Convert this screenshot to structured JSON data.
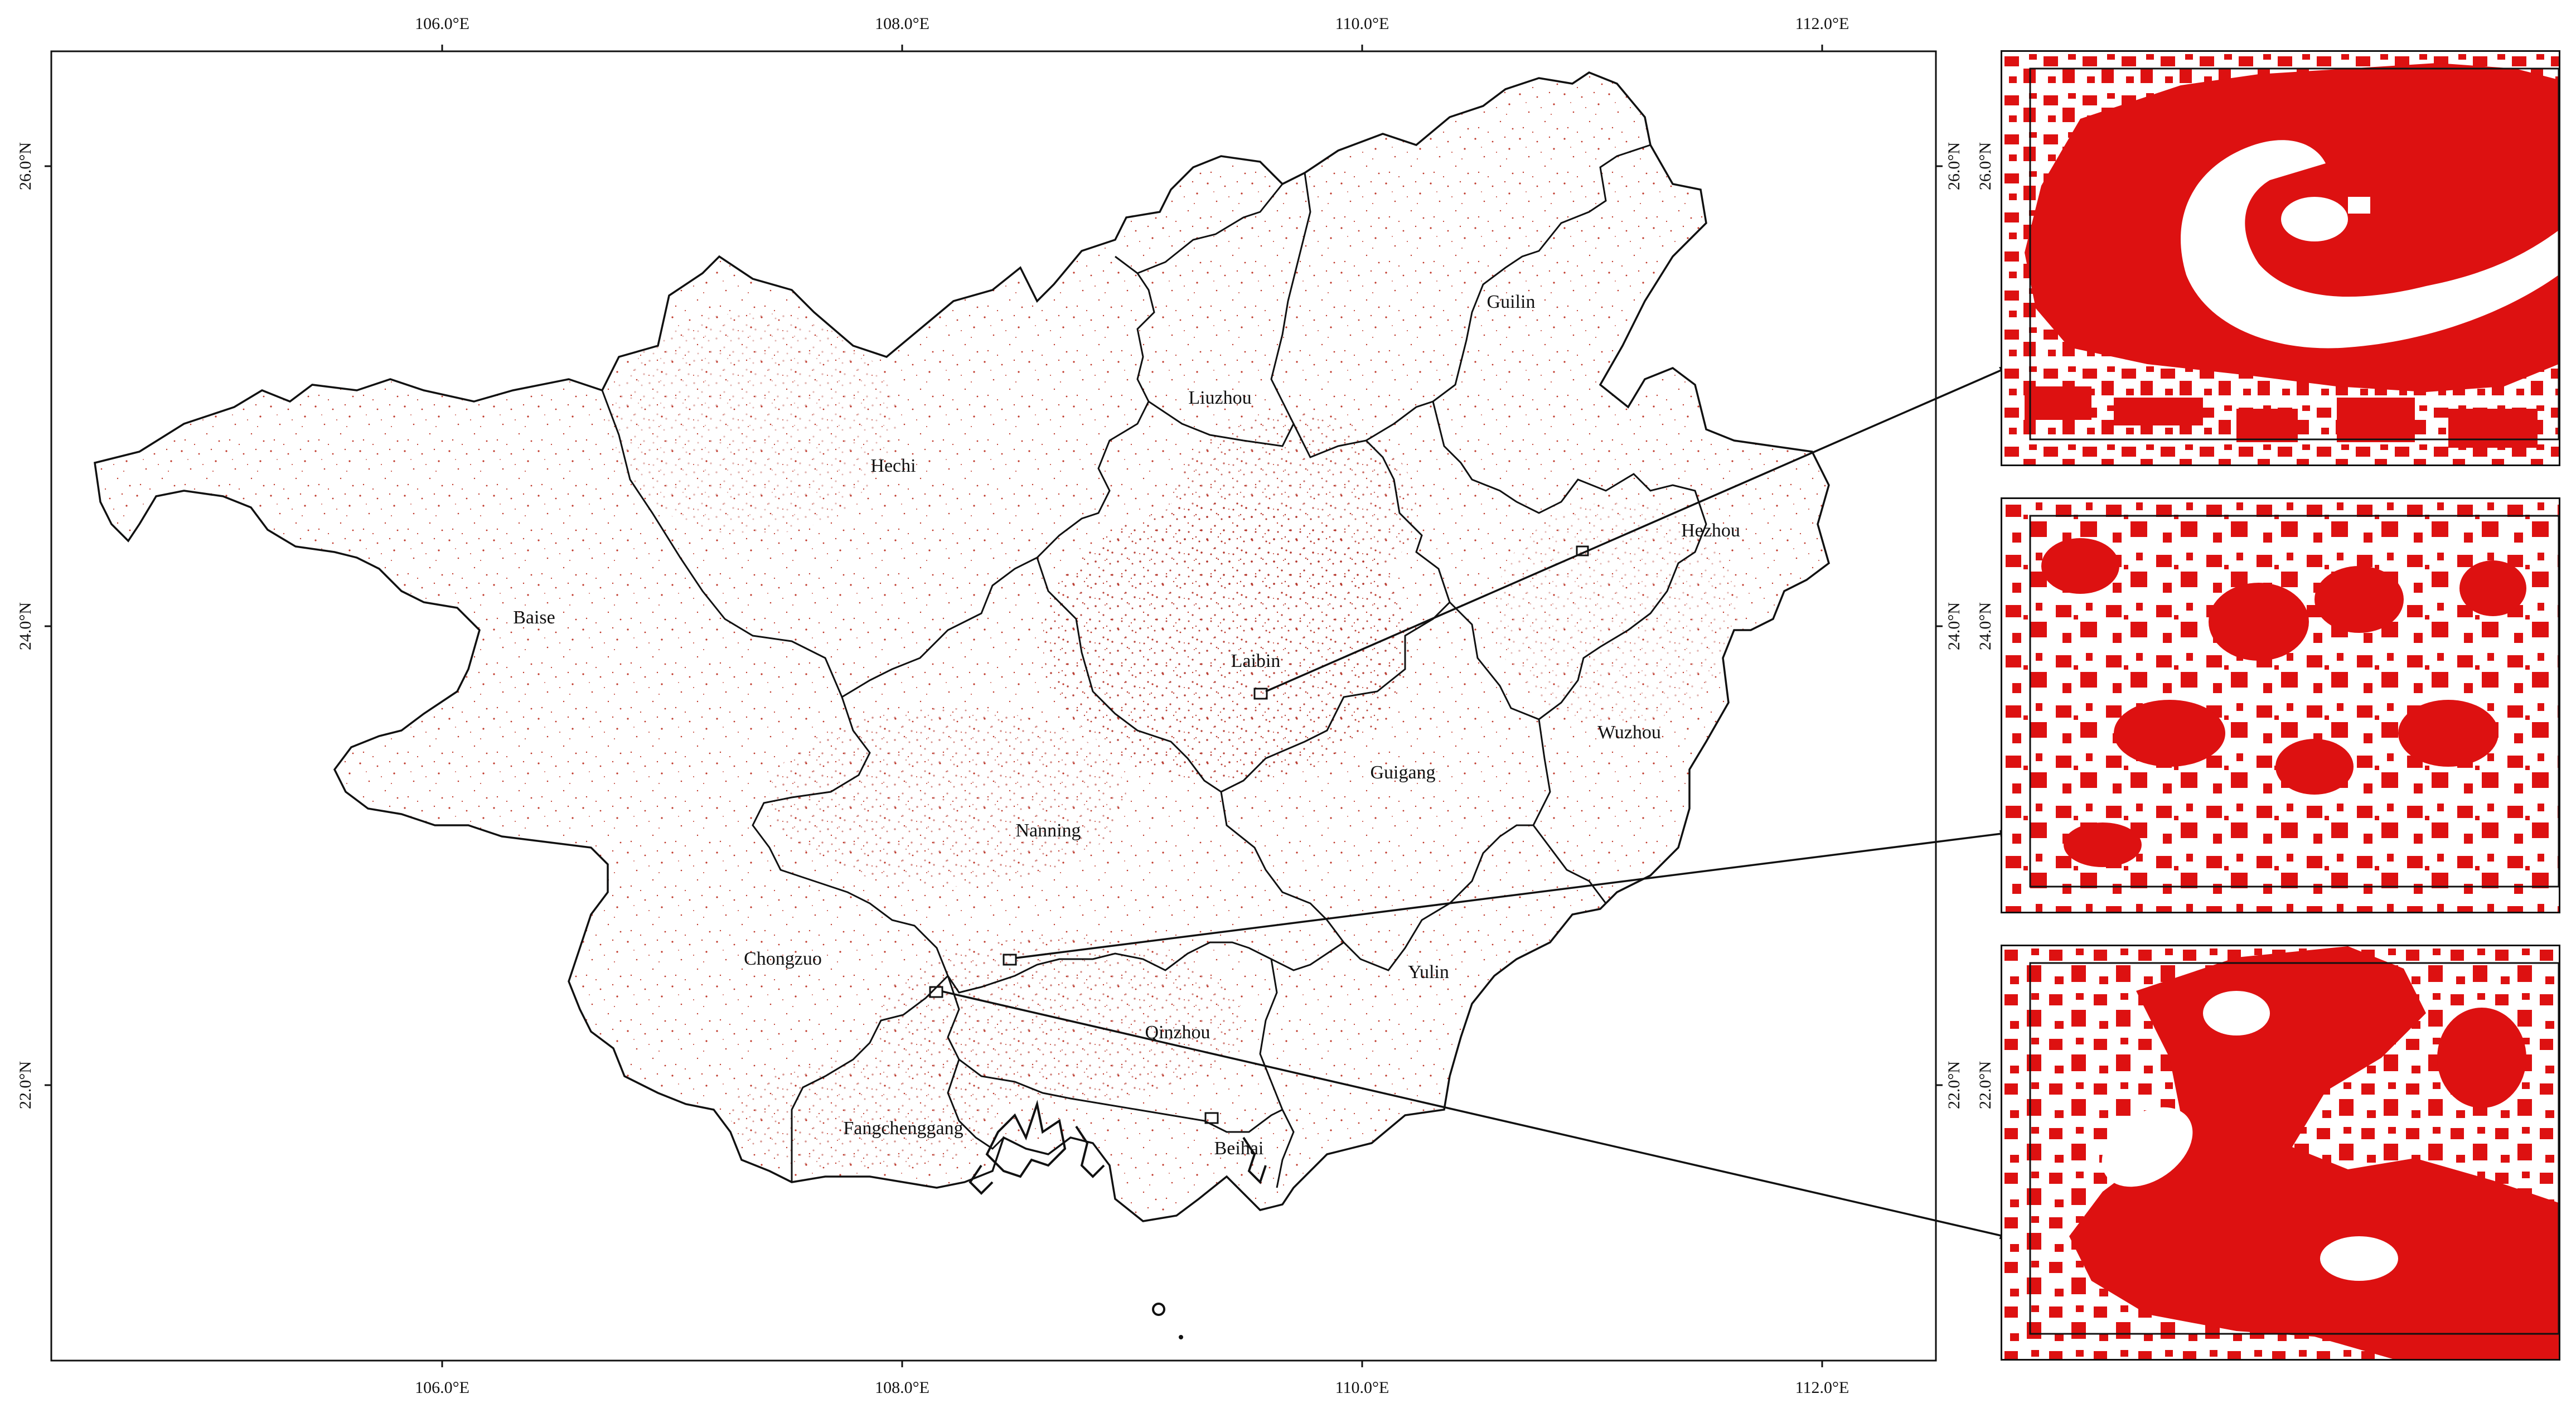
{
  "map": {
    "lon_ticks": [
      "106.0°E",
      "108.0°E",
      "110.0°E",
      "112.0°E"
    ],
    "lat_ticks": [
      "26.0°N",
      "24.0°N",
      "22.0°N"
    ],
    "regions": [
      {
        "name": "Guilin"
      },
      {
        "name": "Liuzhou"
      },
      {
        "name": "Hechi"
      },
      {
        "name": "Hezhou"
      },
      {
        "name": "Baise"
      },
      {
        "name": "Laibin"
      },
      {
        "name": "Wuzhou"
      },
      {
        "name": "Guigang"
      },
      {
        "name": "Nanning"
      },
      {
        "name": "Yulin"
      },
      {
        "name": "Chongzuo"
      },
      {
        "name": "Qinzhou"
      },
      {
        "name": "Fangchenggang"
      },
      {
        "name": "Beihai"
      }
    ],
    "colors": {
      "dots": "#c0392b",
      "inset_fill": "#dd1111",
      "boundary": "#111111"
    }
  },
  "insets": {
    "lat_ticks": [
      "26.0°N",
      "24.0°N",
      "22.0°N"
    ]
  }
}
